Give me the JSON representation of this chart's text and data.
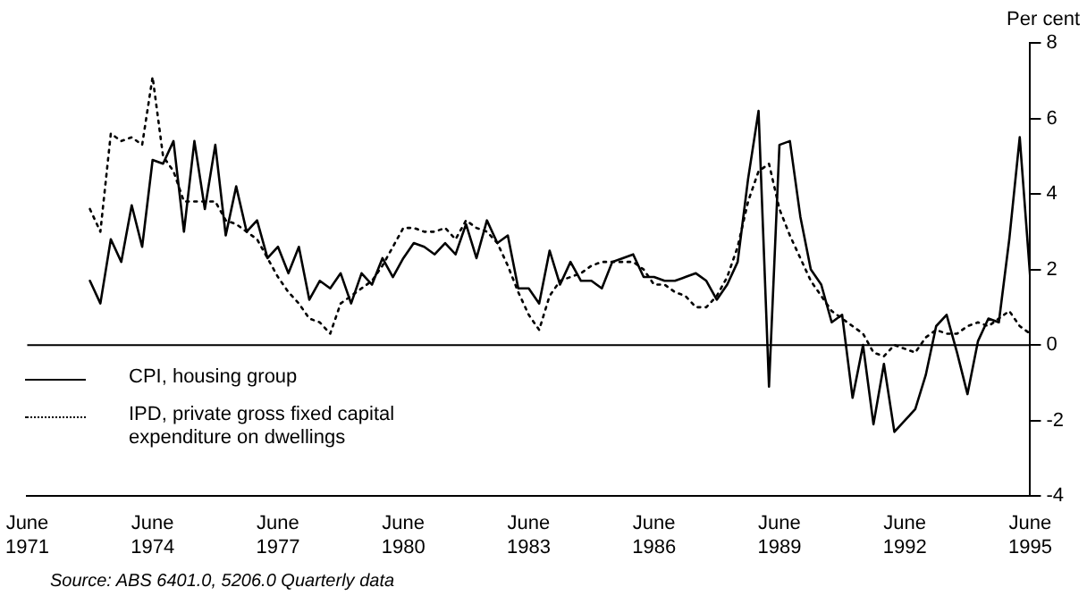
{
  "chart_data": {
    "type": "line",
    "ylabel": "Per cent",
    "x": [
      "1972-12",
      "1973-03",
      "1973-06",
      "1973-09",
      "1973-12",
      "1974-03",
      "1974-06",
      "1974-09",
      "1974-12",
      "1975-03",
      "1975-06",
      "1975-09",
      "1975-12",
      "1976-03",
      "1976-06",
      "1976-09",
      "1976-12",
      "1977-03",
      "1977-06",
      "1977-09",
      "1977-12",
      "1978-03",
      "1978-06",
      "1978-09",
      "1978-12",
      "1979-03",
      "1979-06",
      "1979-09",
      "1979-12",
      "1980-03",
      "1980-06",
      "1980-09",
      "1980-12",
      "1981-03",
      "1981-06",
      "1981-09",
      "1981-12",
      "1982-03",
      "1982-06",
      "1982-09",
      "1982-12",
      "1983-03",
      "1983-06",
      "1983-09",
      "1983-12",
      "1984-03",
      "1984-06",
      "1984-09",
      "1984-12",
      "1985-03",
      "1985-06",
      "1985-09",
      "1985-12",
      "1986-03",
      "1986-06",
      "1986-09",
      "1986-12",
      "1987-03",
      "1987-06",
      "1987-09",
      "1987-12",
      "1988-03",
      "1988-06",
      "1988-09",
      "1988-12",
      "1989-03",
      "1989-06",
      "1989-09",
      "1989-12",
      "1990-03",
      "1990-06",
      "1990-09",
      "1990-12",
      "1991-03",
      "1991-06",
      "1991-09",
      "1991-12",
      "1992-03",
      "1992-06",
      "1992-09",
      "1992-12",
      "1993-03",
      "1993-06",
      "1993-09",
      "1993-12",
      "1994-03",
      "1994-06",
      "1994-09",
      "1994-12",
      "1995-03",
      "1995-06"
    ],
    "series": [
      {
        "name": "CPI, housing group",
        "color": "#000000",
        "line_style": "solid",
        "values": [
          1.7,
          1.1,
          2.8,
          2.2,
          3.7,
          2.6,
          4.9,
          4.8,
          5.4,
          3.0,
          5.4,
          3.6,
          5.3,
          2.9,
          4.2,
          3.0,
          3.3,
          2.3,
          2.6,
          1.9,
          2.6,
          1.2,
          1.7,
          1.5,
          1.9,
          1.1,
          1.9,
          1.6,
          2.3,
          1.8,
          2.3,
          2.7,
          2.6,
          2.4,
          2.7,
          2.4,
          3.2,
          2.3,
          3.3,
          2.7,
          2.9,
          1.5,
          1.5,
          1.1,
          2.5,
          1.6,
          2.2,
          1.7,
          1.7,
          1.5,
          2.2,
          2.3,
          2.4,
          1.8,
          1.8,
          1.7,
          1.7,
          1.8,
          1.9,
          1.7,
          1.2,
          1.6,
          2.2,
          4.4,
          6.2,
          -1.1,
          5.3,
          5.4,
          3.4,
          2.0,
          1.6,
          0.6,
          0.8,
          -1.4,
          0.0,
          -2.1,
          -0.5,
          -2.3,
          -2.0,
          -1.7,
          -0.8,
          0.5,
          0.8,
          -0.2,
          -1.3,
          0.1,
          0.7,
          0.6,
          2.8,
          5.5,
          1.8
        ]
      },
      {
        "name": "IPD, private gross fixed capital expenditure on dwellings",
        "color": "#000000",
        "line_style": "dotted",
        "values": [
          3.6,
          3.0,
          5.6,
          5.4,
          5.5,
          5.3,
          7.1,
          5.0,
          4.6,
          3.8,
          3.8,
          3.8,
          3.8,
          3.3,
          3.2,
          3.0,
          2.8,
          2.3,
          1.8,
          1.4,
          1.1,
          0.7,
          0.6,
          0.3,
          1.1,
          1.3,
          1.5,
          1.7,
          2.1,
          2.6,
          3.1,
          3.1,
          3.0,
          3.0,
          3.1,
          2.8,
          3.3,
          3.1,
          3.0,
          2.7,
          2.1,
          1.4,
          0.8,
          0.4,
          1.3,
          1.7,
          1.8,
          1.9,
          2.1,
          2.2,
          2.2,
          2.2,
          2.2,
          2.0,
          1.6,
          1.6,
          1.4,
          1.3,
          1.0,
          1.0,
          1.3,
          1.8,
          2.6,
          3.8,
          4.6,
          4.8,
          3.6,
          2.9,
          2.3,
          1.7,
          1.3,
          0.9,
          0.7,
          0.5,
          0.3,
          -0.2,
          -0.3,
          0.0,
          -0.1,
          -0.2,
          0.2,
          0.4,
          0.3,
          0.3,
          0.5,
          0.6,
          0.5,
          0.7,
          0.9,
          0.5,
          0.3
        ]
      }
    ],
    "xlim": [
      "1971-06",
      "1995-06"
    ],
    "xticks": [
      {
        "value": "1971-06",
        "label": "June 1971"
      },
      {
        "value": "1974-06",
        "label": "June 1974"
      },
      {
        "value": "1977-06",
        "label": "June 1977"
      },
      {
        "value": "1980-06",
        "label": "June 1980"
      },
      {
        "value": "1983-06",
        "label": "June 1983"
      },
      {
        "value": "1986-06",
        "label": "June 1986"
      },
      {
        "value": "1989-06",
        "label": "June 1989"
      },
      {
        "value": "1992-06",
        "label": "June 1992"
      },
      {
        "value": "1995-06",
        "label": "June 1995"
      }
    ],
    "ylim": [
      -4,
      8
    ],
    "yticks": [
      -4,
      -2,
      0,
      2,
      4,
      6,
      8
    ],
    "ref_lines": [
      {
        "axis": "y",
        "value": 0
      }
    ],
    "grid": false,
    "legend": "bottom left",
    "marker": "none",
    "annotations": [
      "Source: ABS 6401.0, 5206.0 Quarterly data"
    ]
  }
}
